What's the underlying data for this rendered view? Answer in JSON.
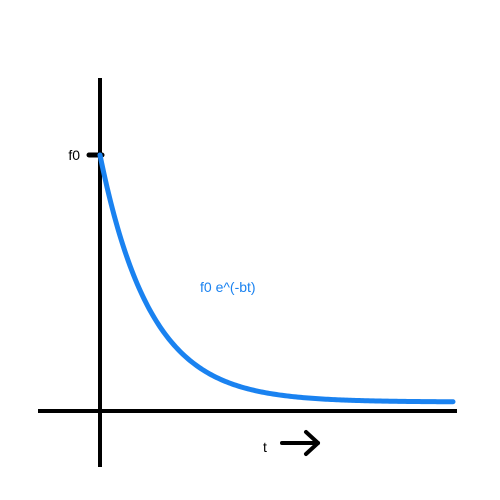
{
  "chart_data": {
    "type": "line",
    "curve_label": "f0 e^(-bt)",
    "y_tick_label": "f0",
    "x_axis_label": "t",
    "series": [
      {
        "values_description_free": true,
        "x": [
          0,
          0.25,
          0.5,
          0.75,
          1,
          1.25,
          1.5,
          1.75,
          2,
          2.5,
          3,
          3.5,
          4,
          4.5,
          5,
          5.5,
          6,
          7
        ],
        "y": [
          1,
          0.779,
          0.607,
          0.472,
          0.368,
          0.287,
          0.223,
          0.174,
          0.135,
          0.082,
          0.05,
          0.03,
          0.018,
          0.011,
          0.007,
          0.004,
          0.002,
          0.001
        ]
      }
    ],
    "xlim": [
      -1.2,
      7
    ],
    "ylim": [
      -0.2,
      1.3
    ],
    "grid": false,
    "colors": {
      "curve": "#1a82f0",
      "axes": "#000000",
      "text": "#000000"
    }
  }
}
